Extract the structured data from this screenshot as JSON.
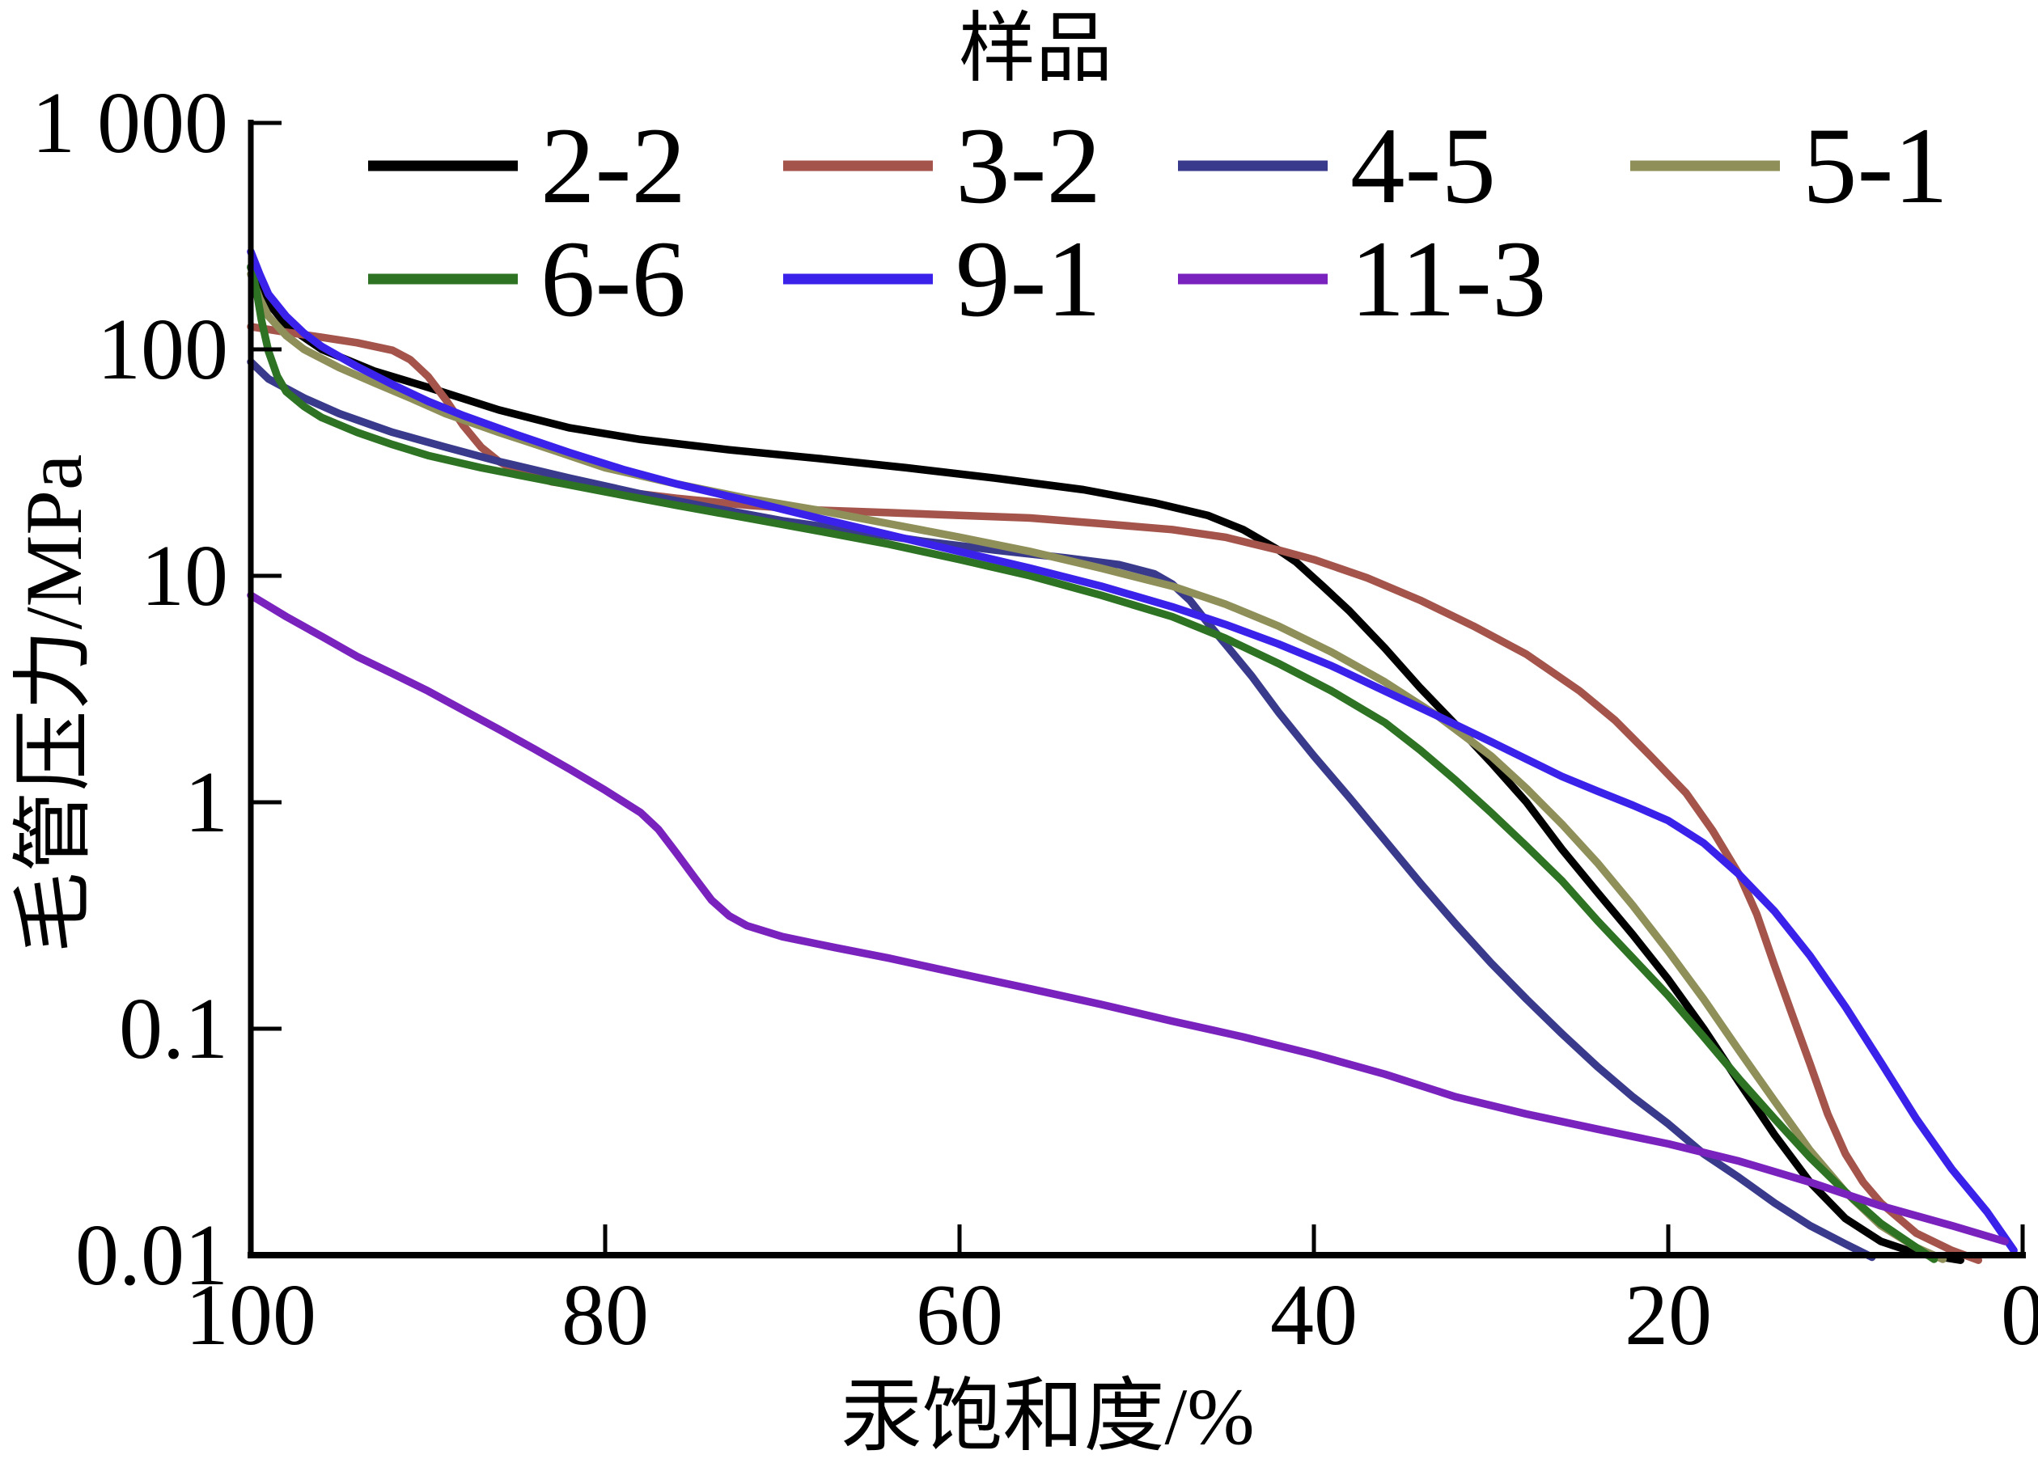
{
  "legend": {
    "title": "样品"
  },
  "axes": {
    "x": {
      "label": "汞饱和度/%",
      "ticks": [
        100,
        80,
        60,
        40,
        20,
        0
      ],
      "min": 0,
      "max": 100,
      "reversed": true
    },
    "y": {
      "label": "毛管压力/MPa",
      "scale": "log",
      "min": 0.01,
      "max": 1000,
      "ticks": [
        {
          "value": 1000,
          "label": "1 000"
        },
        {
          "value": 100,
          "label": "100"
        },
        {
          "value": 10,
          "label": "10"
        },
        {
          "value": 1,
          "label": "1"
        },
        {
          "value": 0.1,
          "label": "0.1"
        },
        {
          "value": 0.01,
          "label": "0.01"
        }
      ]
    }
  },
  "chart_data": {
    "type": "line",
    "title": "样品",
    "xlabel": "汞饱和度/%",
    "ylabel": "毛管压力/MPa",
    "x_axis": {
      "range": [
        100,
        0
      ],
      "ticks": [
        100,
        80,
        60,
        40,
        20,
        0
      ],
      "reversed": true
    },
    "y_axis": {
      "scale": "log",
      "range": [
        0.01,
        1000
      ],
      "ticks": [
        1000,
        100,
        10,
        1,
        0.1,
        0.01
      ]
    },
    "grid": false,
    "legend_position": "top",
    "series": [
      {
        "name": "2-2",
        "color": "#000000",
        "points": [
          [
            100,
            230
          ],
          [
            99,
            160
          ],
          [
            98,
            128
          ],
          [
            96,
            100
          ],
          [
            93,
            80
          ],
          [
            90,
            68
          ],
          [
            86,
            54
          ],
          [
            82,
            45
          ],
          [
            78,
            40
          ],
          [
            73,
            36
          ],
          [
            68,
            33
          ],
          [
            63,
            30
          ],
          [
            58,
            27
          ],
          [
            53,
            24
          ],
          [
            49,
            21
          ],
          [
            46,
            18.5
          ],
          [
            44,
            16
          ],
          [
            42,
            13
          ],
          [
            41,
            11.5
          ],
          [
            39.5,
            9
          ],
          [
            38,
            7
          ],
          [
            36,
            4.8
          ],
          [
            34,
            3.2
          ],
          [
            32,
            2.2
          ],
          [
            30,
            1.5
          ],
          [
            28,
            1.0
          ],
          [
            26,
            0.62
          ],
          [
            24,
            0.4
          ],
          [
            22,
            0.26
          ],
          [
            20,
            0.165
          ],
          [
            18,
            0.1
          ],
          [
            16,
            0.058
          ],
          [
            14,
            0.034
          ],
          [
            12,
            0.021
          ],
          [
            10,
            0.0145
          ],
          [
            8,
            0.0115
          ],
          [
            6,
            0.0102
          ],
          [
            3.5,
            0.0095
          ]
        ]
      },
      {
        "name": "3-2",
        "color": "#A4544B",
        "points": [
          [
            100,
            126
          ],
          [
            98,
            119
          ],
          [
            96,
            113
          ],
          [
            94,
            107
          ],
          [
            92,
            99
          ],
          [
            91,
            90
          ],
          [
            90,
            76
          ],
          [
            89,
            60
          ],
          [
            88,
            46
          ],
          [
            87,
            37
          ],
          [
            86,
            32
          ],
          [
            85,
            29
          ],
          [
            83,
            26
          ],
          [
            80,
            24
          ],
          [
            76,
            22
          ],
          [
            72,
            20.5
          ],
          [
            68,
            19.5
          ],
          [
            64,
            19
          ],
          [
            60,
            18.5
          ],
          [
            56,
            18
          ],
          [
            52,
            17
          ],
          [
            48,
            16
          ],
          [
            45,
            14.8
          ],
          [
            42,
            13
          ],
          [
            40,
            11.8
          ],
          [
            37,
            9.8
          ],
          [
            34,
            7.8
          ],
          [
            31,
            6
          ],
          [
            28,
            4.5
          ],
          [
            25,
            3.1
          ],
          [
            23,
            2.3
          ],
          [
            21,
            1.6
          ],
          [
            19,
            1.1
          ],
          [
            17.5,
            0.75
          ],
          [
            16,
            0.48
          ],
          [
            15,
            0.32
          ],
          [
            14,
            0.19
          ],
          [
            13,
            0.115
          ],
          [
            12,
            0.07
          ],
          [
            11,
            0.042
          ],
          [
            10,
            0.028
          ],
          [
            9,
            0.021
          ],
          [
            8,
            0.017
          ],
          [
            6,
            0.0125
          ],
          [
            4,
            0.0105
          ],
          [
            2.5,
            0.0095
          ]
        ]
      },
      {
        "name": "4-5",
        "color": "#3A3A8C",
        "points": [
          [
            100,
            88
          ],
          [
            99,
            74
          ],
          [
            97,
            61
          ],
          [
            95,
            52
          ],
          [
            92,
            43
          ],
          [
            89,
            37
          ],
          [
            86,
            32
          ],
          [
            82,
            27
          ],
          [
            78,
            23
          ],
          [
            74,
            20
          ],
          [
            70,
            17.5
          ],
          [
            66,
            15.8
          ],
          [
            62,
            14.2
          ],
          [
            58,
            13
          ],
          [
            54,
            12
          ],
          [
            51,
            11.2
          ],
          [
            49,
            10.2
          ],
          [
            48,
            9.2
          ],
          [
            47,
            7.8
          ],
          [
            46,
            6.2
          ],
          [
            45,
            5
          ],
          [
            43.5,
            3.6
          ],
          [
            42,
            2.5
          ],
          [
            40,
            1.6
          ],
          [
            38,
            1.05
          ],
          [
            36,
            0.68
          ],
          [
            34,
            0.44
          ],
          [
            32,
            0.29
          ],
          [
            30,
            0.195
          ],
          [
            28,
            0.135
          ],
          [
            26,
            0.095
          ],
          [
            24,
            0.068
          ],
          [
            22,
            0.05
          ],
          [
            20,
            0.038
          ],
          [
            18,
            0.028
          ],
          [
            16,
            0.022
          ],
          [
            14,
            0.017
          ],
          [
            12,
            0.0135
          ],
          [
            10,
            0.0112
          ],
          [
            8.5,
            0.0098
          ]
        ]
      },
      {
        "name": "5-1",
        "color": "#8F8F5A",
        "points": [
          [
            100,
            215
          ],
          [
            99.5,
            168
          ],
          [
            99,
            140
          ],
          [
            98,
            115
          ],
          [
            97,
            100
          ],
          [
            95,
            83
          ],
          [
            93,
            71
          ],
          [
            91,
            61
          ],
          [
            89,
            52
          ],
          [
            86,
            43
          ],
          [
            83,
            36
          ],
          [
            80,
            30
          ],
          [
            76,
            25.5
          ],
          [
            72,
            22
          ],
          [
            68,
            19.5
          ],
          [
            64,
            17
          ],
          [
            60,
            14.8
          ],
          [
            56,
            12.8
          ],
          [
            52,
            10.8
          ],
          [
            48,
            9
          ],
          [
            45,
            7.5
          ],
          [
            42,
            6
          ],
          [
            39,
            4.6
          ],
          [
            36,
            3.4
          ],
          [
            33,
            2.4
          ],
          [
            30,
            1.6
          ],
          [
            28,
            1.15
          ],
          [
            26,
            0.8
          ],
          [
            24,
            0.54
          ],
          [
            22,
            0.35
          ],
          [
            20,
            0.22
          ],
          [
            18,
            0.135
          ],
          [
            16,
            0.08
          ],
          [
            14,
            0.048
          ],
          [
            12,
            0.029
          ],
          [
            10,
            0.019
          ],
          [
            8,
            0.0135
          ],
          [
            6,
            0.0108
          ],
          [
            4.5,
            0.0096
          ]
        ]
      },
      {
        "name": "6-6",
        "color": "#2D7323",
        "points": [
          [
            100,
            232
          ],
          [
            99.7,
            185
          ],
          [
            99.4,
            135
          ],
          [
            99,
            98
          ],
          [
            98.5,
            76
          ],
          [
            98,
            65
          ],
          [
            97,
            56
          ],
          [
            96,
            50
          ],
          [
            94,
            43
          ],
          [
            92,
            38
          ],
          [
            90,
            34
          ],
          [
            87,
            30
          ],
          [
            84,
            27
          ],
          [
            80,
            23.5
          ],
          [
            76,
            20.5
          ],
          [
            72,
            18
          ],
          [
            68,
            15.8
          ],
          [
            64,
            13.8
          ],
          [
            60,
            11.8
          ],
          [
            56,
            10
          ],
          [
            52,
            8.2
          ],
          [
            48,
            6.6
          ],
          [
            45,
            5.3
          ],
          [
            42,
            4.1
          ],
          [
            39,
            3.1
          ],
          [
            36,
            2.25
          ],
          [
            34,
            1.7
          ],
          [
            32,
            1.25
          ],
          [
            30,
            0.9
          ],
          [
            28,
            0.64
          ],
          [
            26,
            0.45
          ],
          [
            24,
            0.3
          ],
          [
            22,
            0.205
          ],
          [
            20,
            0.14
          ],
          [
            18,
            0.092
          ],
          [
            16,
            0.06
          ],
          [
            14,
            0.04
          ],
          [
            12,
            0.027
          ],
          [
            10,
            0.019
          ],
          [
            8,
            0.0138
          ],
          [
            6,
            0.0108
          ],
          [
            5,
            0.0096
          ]
        ]
      },
      {
        "name": "9-1",
        "color": "#3A22EB",
        "points": [
          [
            100,
            270
          ],
          [
            99.5,
            215
          ],
          [
            99,
            175
          ],
          [
            98,
            140
          ],
          [
            97,
            118
          ],
          [
            96,
            103
          ],
          [
            94,
            84
          ],
          [
            92,
            70
          ],
          [
            90,
            59
          ],
          [
            88,
            51
          ],
          [
            85,
            42
          ],
          [
            82,
            35
          ],
          [
            79,
            29.5
          ],
          [
            76,
            25.5
          ],
          [
            72,
            21.5
          ],
          [
            68,
            18
          ],
          [
            64,
            15.2
          ],
          [
            60,
            12.8
          ],
          [
            56,
            10.8
          ],
          [
            52,
            9
          ],
          [
            48,
            7.3
          ],
          [
            45,
            6.1
          ],
          [
            42,
            5
          ],
          [
            39,
            4
          ],
          [
            36,
            3.1
          ],
          [
            33,
            2.4
          ],
          [
            30,
            1.85
          ],
          [
            28,
            1.55
          ],
          [
            26,
            1.3
          ],
          [
            24,
            1.12
          ],
          [
            22,
            0.97
          ],
          [
            20,
            0.83
          ],
          [
            18,
            0.66
          ],
          [
            16,
            0.48
          ],
          [
            14,
            0.33
          ],
          [
            12,
            0.21
          ],
          [
            10,
            0.125
          ],
          [
            8,
            0.071
          ],
          [
            6,
            0.04
          ],
          [
            4,
            0.024
          ],
          [
            2,
            0.0155
          ],
          [
            0.5,
            0.0105
          ]
        ]
      },
      {
        "name": "11-3",
        "color": "#7A22BE",
        "points": [
          [
            100,
            8.2
          ],
          [
            98,
            6.6
          ],
          [
            96,
            5.4
          ],
          [
            94,
            4.4
          ],
          [
            92,
            3.7
          ],
          [
            90,
            3.1
          ],
          [
            88,
            2.55
          ],
          [
            86,
            2.1
          ],
          [
            84,
            1.72
          ],
          [
            82,
            1.4
          ],
          [
            80,
            1.13
          ],
          [
            78,
            0.9
          ],
          [
            77,
            0.76
          ],
          [
            76,
            0.6
          ],
          [
            75,
            0.47
          ],
          [
            74,
            0.37
          ],
          [
            73,
            0.315
          ],
          [
            72,
            0.285
          ],
          [
            70,
            0.255
          ],
          [
            67,
            0.228
          ],
          [
            64,
            0.205
          ],
          [
            60,
            0.175
          ],
          [
            56,
            0.15
          ],
          [
            52,
            0.128
          ],
          [
            48,
            0.108
          ],
          [
            44,
            0.092
          ],
          [
            40,
            0.077
          ],
          [
            36,
            0.063
          ],
          [
            32,
            0.05
          ],
          [
            28,
            0.042
          ],
          [
            24,
            0.036
          ],
          [
            20,
            0.031
          ],
          [
            16,
            0.026
          ],
          [
            12,
            0.021
          ],
          [
            8,
            0.0165
          ],
          [
            4,
            0.0135
          ],
          [
            1,
            0.0115
          ]
        ]
      }
    ]
  }
}
